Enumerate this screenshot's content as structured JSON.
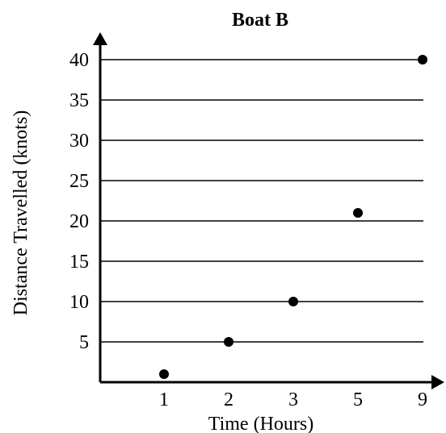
{
  "chart_data": {
    "type": "scatter",
    "title": "Boat B",
    "xlabel": "Time (Hours)",
    "ylabel": "Distance Travelled (knots)",
    "x_categories": [
      "1",
      "2",
      "3",
      "5",
      "9"
    ],
    "points": [
      {
        "x": "1",
        "y": 1
      },
      {
        "x": "2",
        "y": 5
      },
      {
        "x": "3",
        "y": 10
      },
      {
        "x": "5",
        "y": 21
      },
      {
        "x": "9",
        "y": 40
      }
    ],
    "y_ticks": [
      5,
      10,
      15,
      20,
      25,
      30,
      35,
      40
    ],
    "ylim": [
      0,
      40
    ],
    "grid": "horizontal",
    "colors": {
      "ink": "#000000",
      "background": "#ffffff"
    }
  }
}
